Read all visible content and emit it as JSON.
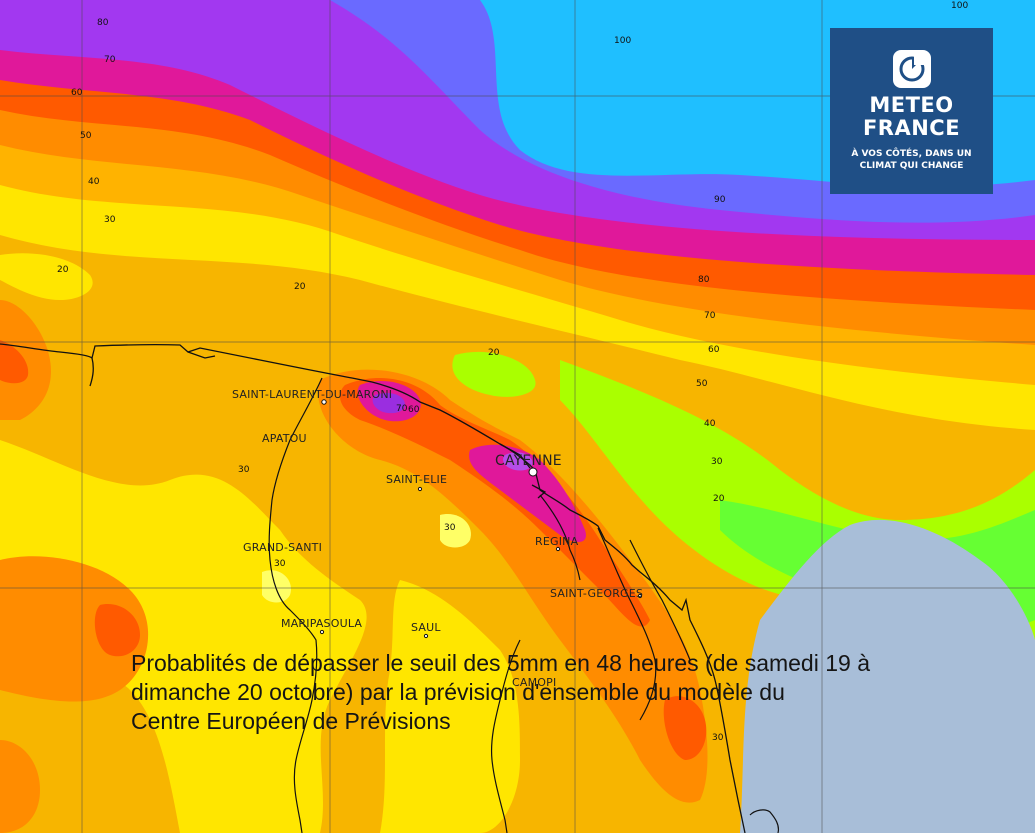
{
  "logo": {
    "line1": "METEO",
    "line2": "FRANCE",
    "tagline1": "À VOS CÔTÉS, DANS UN",
    "tagline2": "CLIMAT QUI CHANGE"
  },
  "caption": {
    "line1": "Probablités de dépasser le seuil des  5mm en 48 heures (de samedi 19 à",
    "line2": "dimanche 20 octobre) par la prévision d'ensemble du modèle du",
    "line3": "Centre Européen de Prévisions"
  },
  "places": {
    "saint_laurent": "SAINT-LAURENT-DU-MARONI",
    "apatou": "APATOU",
    "cayenne": "CAYENNE",
    "saint_elie": "SAINT-ELIE",
    "grand_santi": "GRAND-SANTI",
    "regina": "REGINA",
    "saint_georges": "SAINT-GEORGES",
    "maripasoula": "MARIPASOULA",
    "saul": "SAUL",
    "camopi": "CAMOPI"
  },
  "contour_labels": [
    "80",
    "70",
    "60",
    "50",
    "40",
    "30",
    "20",
    "100",
    "90",
    "80",
    "70",
    "60",
    "50",
    "40",
    "30",
    "20",
    "20",
    "20",
    "30",
    "30",
    "30",
    "30",
    "70",
    "60",
    "100"
  ],
  "legend_colors": {
    "p10": "#f5b400",
    "p20": "#ffe000",
    "p30": "#ffff55",
    "p40": "#aaff00",
    "p50": "#66ff33",
    "p60": "#ff8c00",
    "p70": "#ff6000",
    "p80": "#ff3300",
    "p90": "#e0189a",
    "p95": "#b050ff",
    "p99": "#6a6aff",
    "p100": "#1fbfff",
    "no_data": "#a8bed8"
  }
}
